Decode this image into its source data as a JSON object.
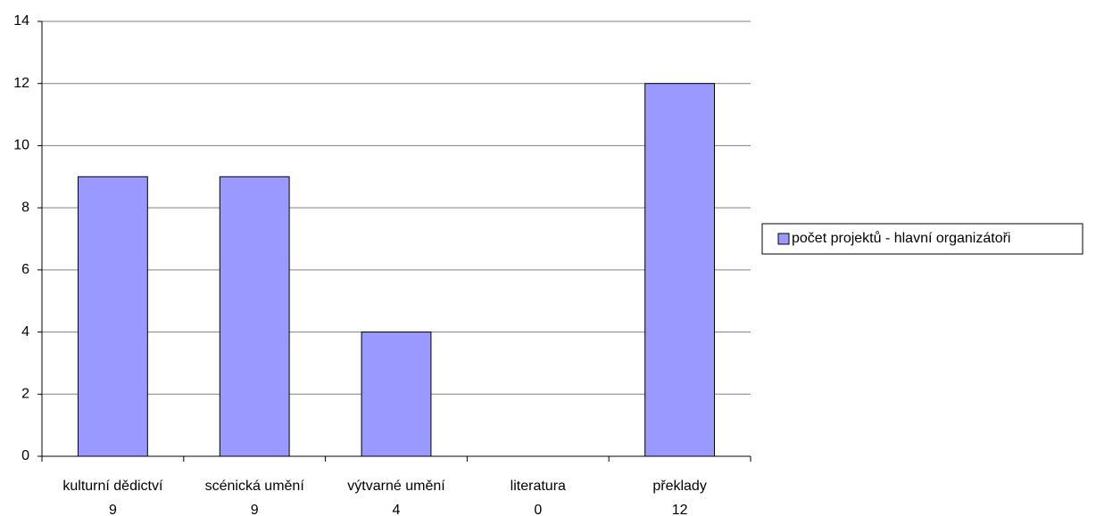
{
  "chart_data": {
    "type": "bar",
    "categories": [
      "kulturní dědictví",
      "scénická umění",
      "výtvarné umění",
      "literatura",
      "překlady"
    ],
    "series": [
      {
        "name": "počet projektů - hlavní organizátoři",
        "color": "#9999ff",
        "values": [
          9,
          9,
          4,
          0,
          12
        ]
      }
    ],
    "ylim": [
      0,
      14
    ],
    "yticks": [
      0,
      2,
      4,
      6,
      8,
      10,
      12,
      14
    ],
    "grid": true,
    "legend": "right"
  }
}
